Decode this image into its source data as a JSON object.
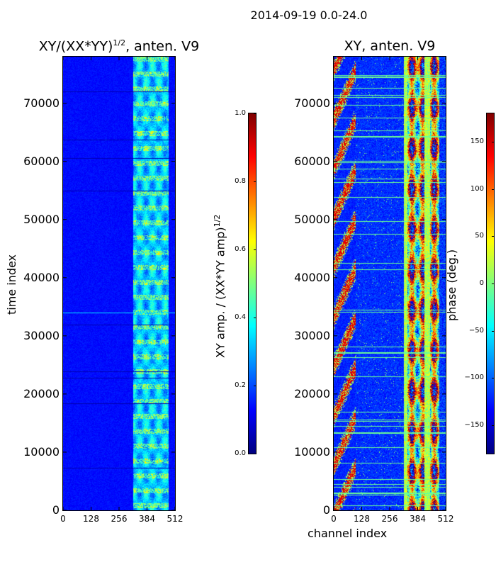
{
  "suptitle": "2014-09-19 0.0-24.0",
  "chart_data": [
    {
      "type": "heatmap",
      "title": "XY/(XX*YY)^1/2, anten. V9",
      "title_text": "XY/(XX*YY)",
      "title_sup": "1/2",
      "title_tail": ", anten. V9",
      "xlabel": "",
      "ylabel": "time index",
      "x_ticks": [
        0,
        128,
        256,
        384,
        512
      ],
      "y_ticks": [
        0,
        10000,
        20000,
        30000,
        40000,
        50000,
        60000,
        70000
      ],
      "xlim": [
        0,
        512
      ],
      "ylim": [
        0,
        78000
      ],
      "colormap": "jet",
      "colorbar": {
        "label": "XY amp. / (XX*YY amp)^1/2",
        "label_text": "XY amp. / (XX*YY amp)",
        "label_sup": "1/2",
        "range": [
          0.0,
          1.0
        ],
        "ticks": [
          "0.0",
          "0.2",
          "0.4",
          "0.6",
          "0.8",
          "1.0"
        ]
      }
    },
    {
      "type": "heatmap",
      "title": "XY, anten. V9",
      "xlabel": "channel index",
      "ylabel": "",
      "x_ticks": [
        0,
        128,
        256,
        384,
        512
      ],
      "y_ticks": [
        0,
        10000,
        20000,
        30000,
        40000,
        50000,
        60000,
        70000
      ],
      "xlim": [
        0,
        512
      ],
      "ylim": [
        0,
        78000
      ],
      "colormap": "jet",
      "colorbar": {
        "label": "phase (deg.)",
        "range": [
          -180,
          180
        ],
        "ticks": [
          "−150",
          "−100",
          "−50",
          "0",
          "50",
          "100",
          "150"
        ],
        "tick_values": [
          -150,
          -100,
          -50,
          0,
          50,
          100,
          150
        ]
      }
    }
  ]
}
